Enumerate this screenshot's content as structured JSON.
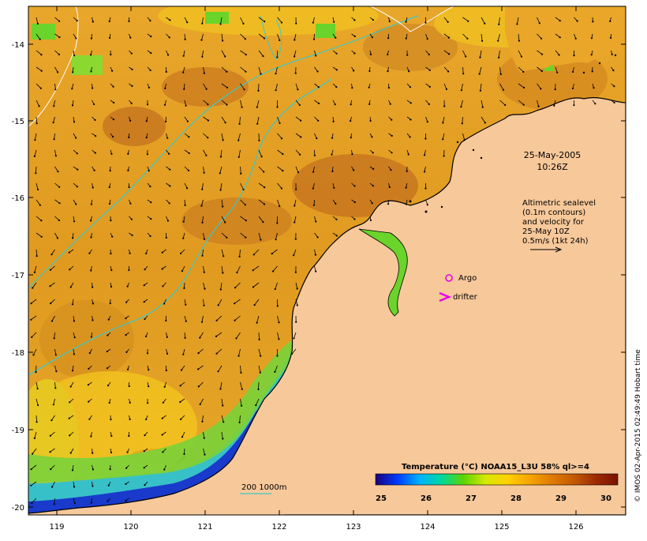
{
  "map": {
    "date_label": "25-May-2005",
    "time_label": "10:26Z",
    "altimetry_note": [
      "Altimetric sealevel",
      "(0.1m contours)",
      "and velocity for",
      "25-May 10Z",
      "0.5m/s (1kt 24h)"
    ],
    "legend_argo": "Argo",
    "legend_drifter": "drifter",
    "isobath_label": "200  1000m",
    "colorbar_title": "Temperature (°C) NOAA15_L3U 58% ql>=4",
    "colorbar_ticks": [
      "25",
      "26",
      "27",
      "28",
      "29",
      "30"
    ],
    "colorbar_colors": [
      "#1a007a",
      "#003cff",
      "#00b4ff",
      "#00d89a",
      "#5ed400",
      "#d8e800",
      "#ffd000",
      "#f5a500",
      "#e07a00",
      "#c45a00",
      "#9e2a00",
      "#7a1200"
    ],
    "lat_ticks": [
      "-14",
      "-15",
      "-16",
      "-17",
      "-18",
      "-19",
      "-20"
    ],
    "lon_ticks": [
      "119",
      "120",
      "121",
      "122",
      "123",
      "124",
      "125",
      "126"
    ],
    "credit": "© IMOS 02-Apr-2015 02:49:49 Hobart time",
    "colors": {
      "land": "#f7c89a",
      "sst_warm": "#e8a62a",
      "sst_hot": "#c4721e",
      "sst_cool": "#6ad42a",
      "isobath": "#3cc8c8",
      "argo": "#e800e8",
      "drifter": "#e800e8"
    }
  }
}
